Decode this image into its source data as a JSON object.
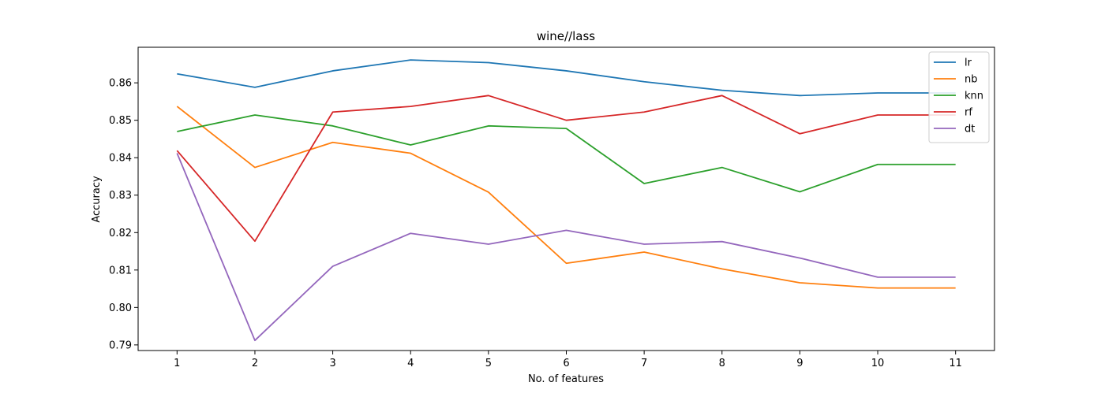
{
  "chart_data": {
    "type": "line",
    "title": "wine//lass",
    "xlabel": "No. of features",
    "ylabel": "Accuracy",
    "x": [
      1,
      2,
      3,
      4,
      5,
      6,
      7,
      8,
      9,
      10,
      11
    ],
    "xlim": [
      0.5,
      11.5
    ],
    "ylim": [
      0.7885,
      0.8695
    ],
    "xticks": [
      "1",
      "2",
      "3",
      "4",
      "5",
      "6",
      "7",
      "8",
      "9",
      "10",
      "11"
    ],
    "yticks": [
      0.79,
      0.8,
      0.81,
      0.82,
      0.83,
      0.84,
      0.85,
      0.86
    ],
    "ytick_labels": [
      "0.79",
      "0.80",
      "0.81",
      "0.82",
      "0.83",
      "0.84",
      "0.85",
      "0.86"
    ],
    "legend_position": "top-right",
    "grid": false,
    "series": [
      {
        "name": "lr",
        "color": "#1f77b4",
        "values": [
          0.8624,
          0.8588,
          0.8632,
          0.8661,
          0.8654,
          0.8632,
          0.8603,
          0.858,
          0.8566,
          0.8573,
          0.8573
        ]
      },
      {
        "name": "nb",
        "color": "#ff7f0e",
        "values": [
          0.8537,
          0.8374,
          0.8441,
          0.8412,
          0.8308,
          0.8118,
          0.8148,
          0.8103,
          0.8066,
          0.8052,
          0.8052
        ]
      },
      {
        "name": "knn",
        "color": "#2ca02c",
        "values": [
          0.847,
          0.8514,
          0.8485,
          0.8434,
          0.8485,
          0.8478,
          0.8331,
          0.8374,
          0.8309,
          0.8382,
          0.8382
        ]
      },
      {
        "name": "rf",
        "color": "#d62728",
        "values": [
          0.8419,
          0.8177,
          0.8522,
          0.8537,
          0.8566,
          0.85,
          0.8522,
          0.8566,
          0.8464,
          0.8514,
          0.8514
        ]
      },
      {
        "name": "dt",
        "color": "#9467bd",
        "values": [
          0.8412,
          0.7912,
          0.811,
          0.8198,
          0.8169,
          0.8206,
          0.8169,
          0.8176,
          0.8132,
          0.8081,
          0.8081
        ]
      }
    ]
  }
}
